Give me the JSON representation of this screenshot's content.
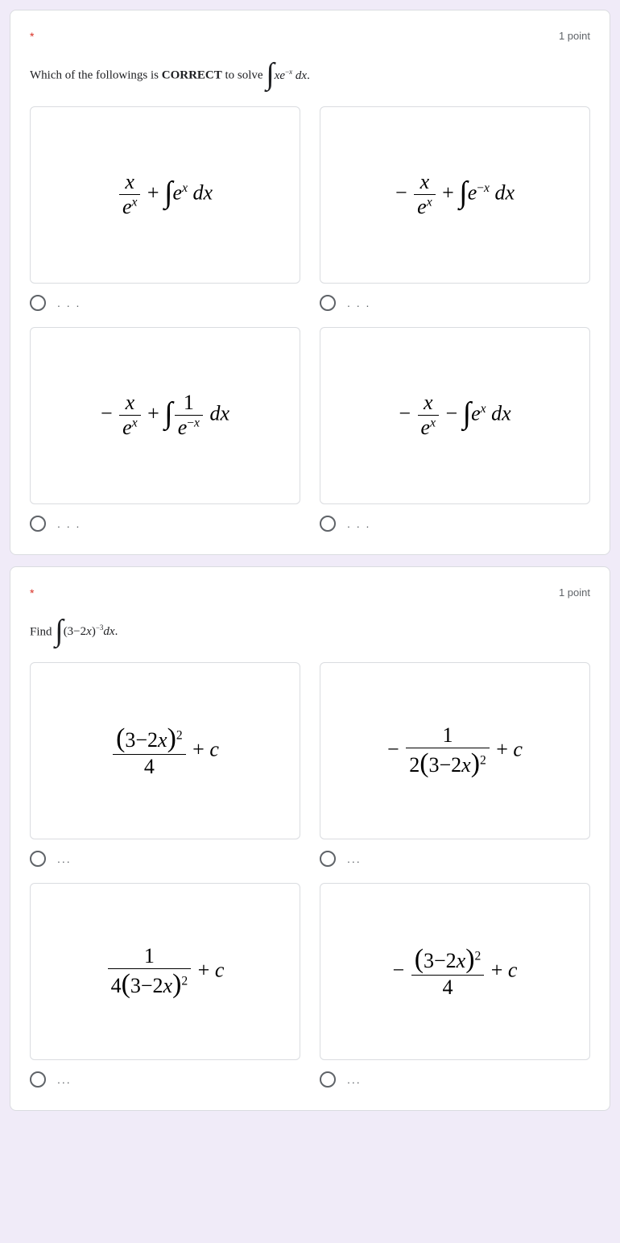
{
  "cards": [
    {
      "required_marker": "*",
      "points_label": "1 point",
      "question_prefix": "Which of the followings is ",
      "question_bold": "CORRECT",
      "question_suffix": " to solve ",
      "question_integral_html": "<span class='int'>∫</span><i>xe</i><sup>−<i>x</i></sup> <i>dx</i>.",
      "options": [
        {
          "formula_html": "<span class='frac'><span class='num'><i>x</i></span><span class='den'><i>e</i><sup><i>x</i></sup></span></span> + <span class='int'>∫</span><i>e</i><sup><i>x</i></sup> <i>dx</i>"
        },
        {
          "formula_html": "− <span class='frac'><span class='num'><i>x</i></span><span class='den'><i>e</i><sup><i>x</i></sup></span></span> + <span class='int'>∫</span><i>e</i><sup>−<i>x</i></sup> <i>dx</i>"
        },
        {
          "formula_html": "− <span class='frac'><span class='num'><i>x</i></span><span class='den'><i>e</i><sup><i>x</i></sup></span></span> + <span class='int'>∫</span><span class='frac'><span class='num'>1</span><span class='den'><i>e</i><sup>−<i>x</i></sup></span></span> <i>dx</i>"
        },
        {
          "formula_html": "− <span class='frac'><span class='num'><i>x</i></span><span class='den'><i>e</i><sup><i>x</i></sup></span></span> − <span class='int'>∫</span><i>e</i><sup><i>x</i></sup> <i>dx</i>"
        }
      ],
      "radio_label": ". . ."
    },
    {
      "required_marker": "*",
      "points_label": "1 point",
      "question_prefix": "Find ",
      "question_bold": "",
      "question_suffix": "",
      "question_integral_html": "<span class='int'>∫</span>(3−2<i>x</i>)<sup>−3</sup><i>dx</i>.",
      "options": [
        {
          "formula_html": "<span class='frac'><span class='num'><span class='big-paren'>(</span>3−2<i>x</i><span class='big-paren'>)</span><sup>2</sup></span><span class='den'>4</span></span> + <i>c</i>"
        },
        {
          "formula_html": "− <span class='frac'><span class='num'>1</span><span class='den'>2<span class='big-paren'>(</span>3−2<i>x</i><span class='big-paren'>)</span><sup>2</sup></span></span> + <i>c</i>"
        },
        {
          "formula_html": "<span class='frac'><span class='num'>1</span><span class='den'>4<span class='big-paren'>(</span>3−2<i>x</i><span class='big-paren'>)</span><sup>2</sup></span></span> + <i>c</i>"
        },
        {
          "formula_html": "− <span class='frac'><span class='num'><span class='big-paren'>(</span>3−2<i>x</i><span class='big-paren'>)</span><sup>2</sup></span><span class='den'>4</span></span> + <i>c</i>"
        }
      ],
      "radio_label": "..."
    }
  ]
}
